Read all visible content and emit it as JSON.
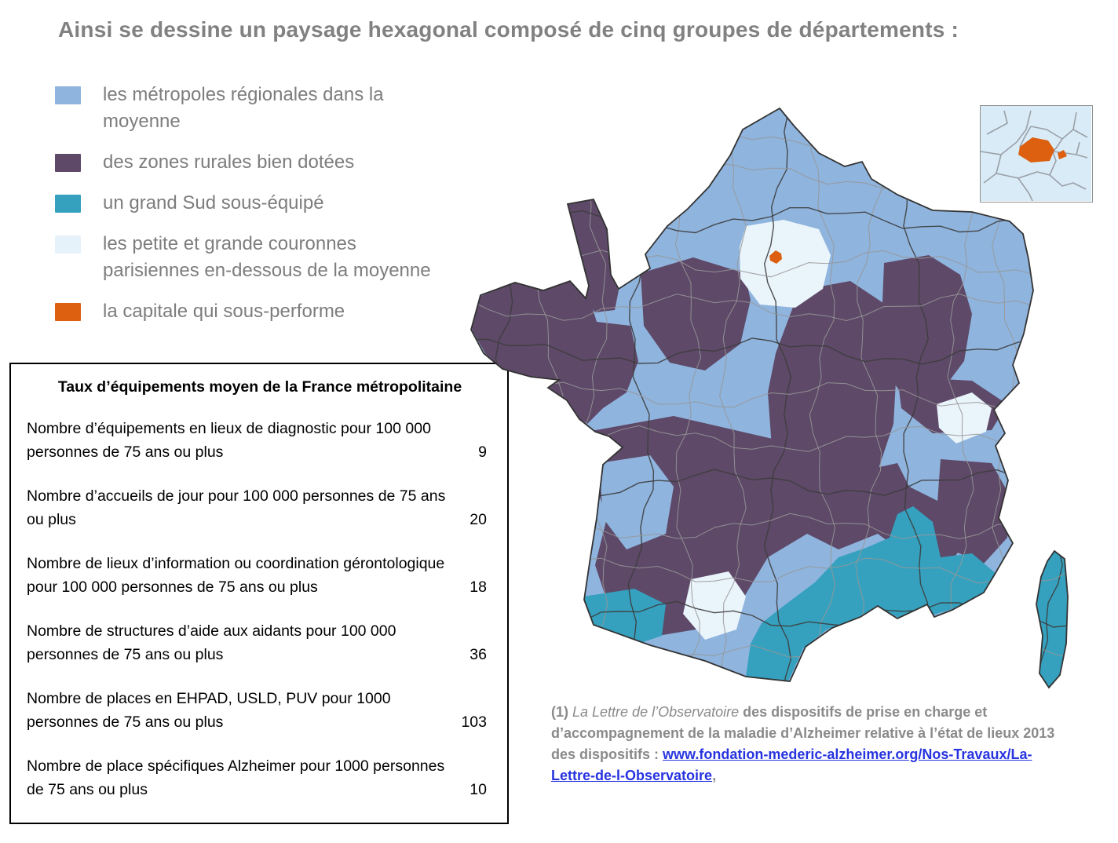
{
  "title": "Ainsi se dessine un paysage hexagonal composé de cinq groupes de départements :",
  "legend": {
    "items": [
      {
        "label": "les métropoles régionales dans la moyenne",
        "color": "#8FB4DE"
      },
      {
        "label": "des zones rurales bien dotées",
        "color": "#5E4968"
      },
      {
        "label": "un grand Sud sous-équipé",
        "color": "#35A1BF"
      },
      {
        "label": "les petite et grande couronnes parisiennes en-dessous de la moyenne",
        "color": "#E6F2FA"
      },
      {
        "label": "la capitale qui sous-performe",
        "color": "#DC600F"
      }
    ]
  },
  "stats_table": {
    "title": "Taux d’équipements moyen de la France métropolitaine",
    "rows": [
      {
        "label": "Nombre d’équipements en lieux de diagnostic pour 100 000 personnes de 75 ans ou plus",
        "value": "9"
      },
      {
        "label": "Nombre d’accueils de jour pour 100 000 personnes de 75 ans ou plus",
        "value": "20"
      },
      {
        "label": "Nombre de lieux d’information ou coordination gérontologique pour 100 000 personnes de 75 ans ou plus",
        "value": "18"
      },
      {
        "label": "Nombre de structures d’aide aux aidants pour 100 000 personnes de 75 ans ou plus",
        "value": "36"
      },
      {
        "label": "Nombre de places en EHPAD, USLD, PUV pour 1000 personnes de 75 ans ou plus",
        "value": "103"
      },
      {
        "label": "Nombre de place spécifiques Alzheimer pour 1000 personnes de 75 ans ou plus",
        "value": "10"
      }
    ]
  },
  "map": {
    "group_colors": {
      "metropoles": "#8FB4DE",
      "rurales": "#5E4968",
      "sud": "#35A1BF",
      "couronnes": "#EAF4FB",
      "capitale": "#DC600F"
    },
    "inset_background": "#D9EBF6",
    "border_dark": "#3d3d3d",
    "border_light": "#979797",
    "outline": "#333333"
  },
  "footnote": {
    "marker": "(1) ",
    "italic_part": "La Lettre de l’Observatoire",
    "text": " des dispositifs de prise en charge et d’accompagnement de la maladie d’Alzheimer relative à l’état de lieux 2013 des dispositifs : ",
    "link": "www.fondation-mederic-alzheimer.org/Nos-Travaux/La-Lettre-de-l-Observatoire",
    "link_color": "#2733DF",
    "suffix": ","
  }
}
